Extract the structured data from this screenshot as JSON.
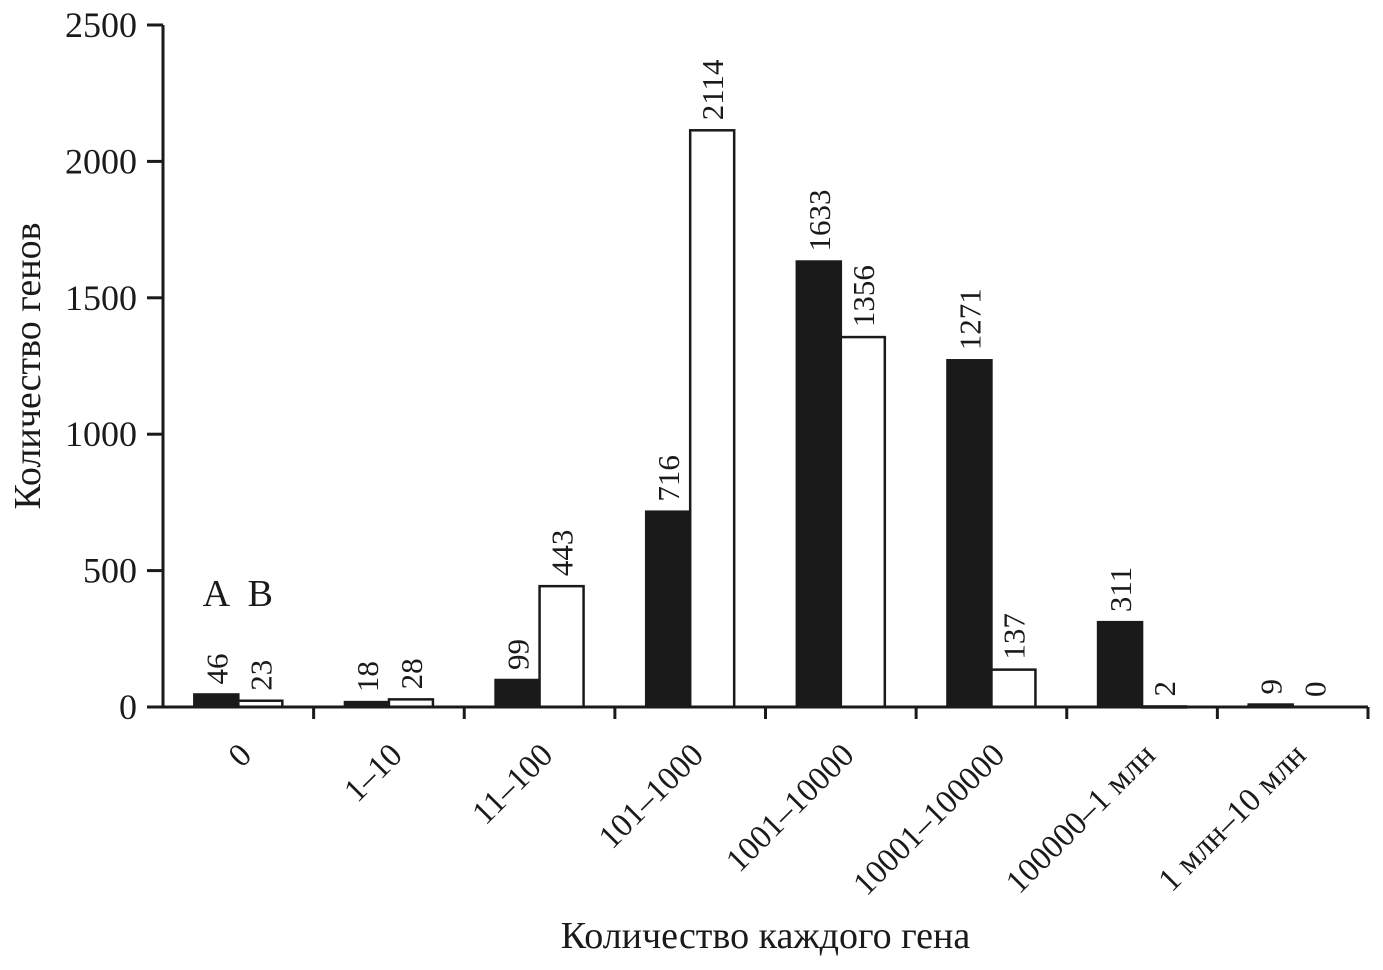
{
  "figure": {
    "background": "#ffffff",
    "ink": "#1a1a1a"
  },
  "chart_data": {
    "type": "bar",
    "title": "",
    "xlabel": "Количество каждого гена",
    "ylabel": "Количество генов",
    "categories": [
      "0",
      "1–10",
      "11–100",
      "101–1000",
      "1001–10000",
      "10001–100000",
      "100000–1 млн",
      "1 млн–10 млн"
    ],
    "series": [
      {
        "name": "A",
        "fill": "black",
        "values": [
          46,
          18,
          99,
          716,
          1633,
          1271,
          311,
          9
        ]
      },
      {
        "name": "B",
        "fill": "white",
        "values": [
          23,
          28,
          443,
          2114,
          1356,
          137,
          2,
          0
        ]
      }
    ],
    "ylim": [
      0,
      2500
    ],
    "yticks": [
      0,
      500,
      1000,
      1500,
      2000,
      2500
    ],
    "grid": false,
    "legend": {
      "position": "above-first-group",
      "labels": [
        "A",
        "B"
      ]
    },
    "value_labels_rotation": 90,
    "xtick_rotation": 45
  }
}
